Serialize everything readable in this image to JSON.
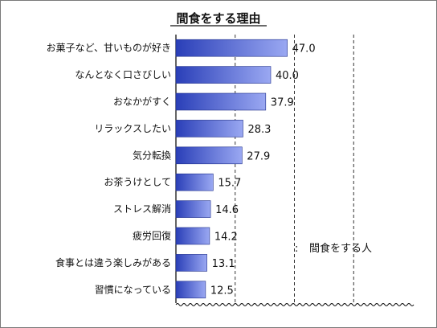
{
  "chart_data": {
    "type": "bar",
    "orientation": "horizontal",
    "title": "間食をする理由",
    "categories": [
      "お菓子など、甘いものが好き",
      "なんとなく口さびしい",
      "おなかがすく",
      "リラックスしたい",
      "気分転換",
      "お茶うけとして",
      "ストレス解消",
      "疲労回復",
      "食事とは違う楽しみがある",
      "習慣になっている"
    ],
    "series": [
      {
        "name": "間食をする人",
        "values": [
          47.0,
          40.0,
          37.9,
          28.3,
          27.9,
          15.7,
          14.6,
          14.2,
          13.1,
          12.5
        ],
        "labels": [
          "47.0",
          "40.0",
          "37.9",
          "28.3",
          "27.9",
          "15.7",
          "14.6",
          "14.2",
          "13.1",
          "12.5"
        ]
      }
    ],
    "xlim": [
      0,
      100
    ],
    "grid": "vertical dashed",
    "legend": "lower-right",
    "colors": {
      "bar_dark": "#2a3fb8",
      "bar_light": "#9aa8f2",
      "bar_edge": "#1f2f8a",
      "axis": "#000000",
      "grid": "#333333"
    }
  }
}
